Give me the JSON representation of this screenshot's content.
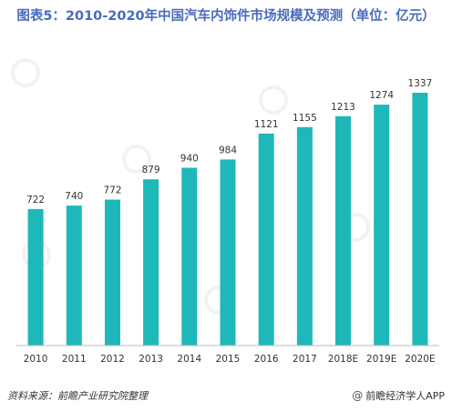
{
  "title": "图表5：2010-2020年中国汽车内饰件市场规模及预测（单位：亿元）",
  "footer": {
    "source": "资料来源：前瞻产业研究院整理",
    "brand": "前瞻经济学人APP"
  },
  "colors": {
    "bar": "#1fb8b8",
    "title": "#4a6bbd",
    "axis": "#999999"
  },
  "chart_data": {
    "type": "bar",
    "categories": [
      "2010",
      "2011",
      "2012",
      "2013",
      "2014",
      "2015",
      "2016",
      "2017",
      "2018E",
      "2019E",
      "2020E"
    ],
    "values": [
      722,
      740,
      772,
      879,
      940,
      984,
      1121,
      1155,
      1213,
      1274,
      1337
    ],
    "ylim": [
      0,
      1337
    ],
    "grid": false,
    "legend": "none"
  }
}
